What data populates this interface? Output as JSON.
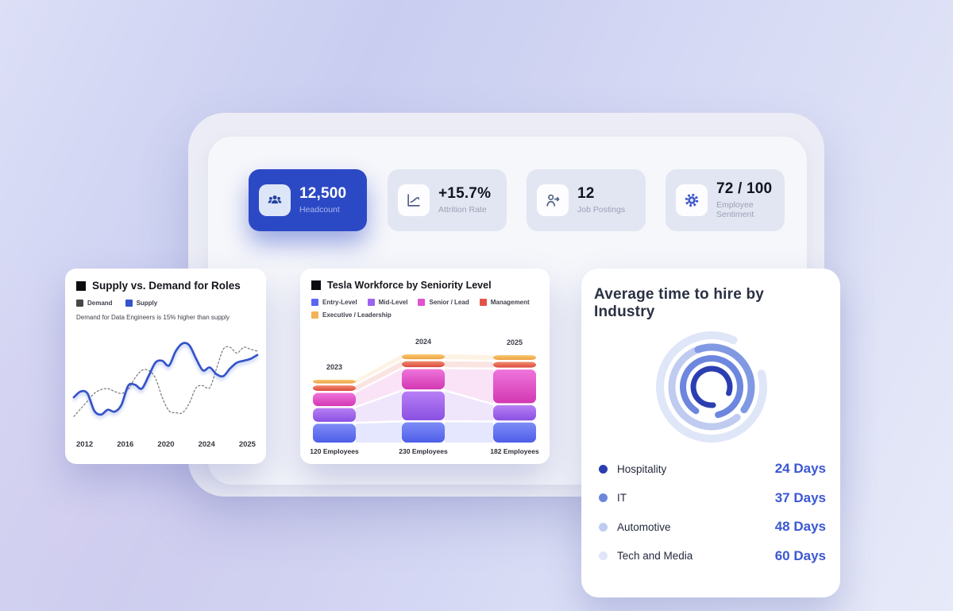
{
  "theme": {
    "primary_blue": "#2c49c5",
    "value_blue": "#3b57d2",
    "card_bg": "#ffffff",
    "kpi_bg": "#e2e6f2"
  },
  "kpis": [
    {
      "value": "12,500",
      "label": "Headcount",
      "icon": "people-group-icon",
      "active": true
    },
    {
      "value": "+15.7%",
      "label": "Attrition Rate",
      "icon": "trend-up-icon",
      "active": false
    },
    {
      "value": "12",
      "label": "Job Postings",
      "icon": "user-arrow-icon",
      "active": false
    },
    {
      "value": "72 / 100",
      "label": "Employee Sentiment",
      "icon": "gear-icon",
      "active": false
    }
  ],
  "chart_data": [
    {
      "id": "supply_demand",
      "type": "line",
      "title": "Supply vs. Demand for Roles",
      "note": "Demand for Data Engineers is 15% higher than supply",
      "x_tick_labels": [
        "2012",
        "2016",
        "2020",
        "2024",
        "2025"
      ],
      "ylim": [
        0,
        100
      ],
      "grid": false,
      "legend_position": "top-left",
      "series": [
        {
          "name": "Demand",
          "style": "dotted",
          "color": "#474747",
          "values": [
            18,
            26,
            34,
            42,
            46,
            47,
            44,
            42,
            46,
            58,
            66,
            66,
            58,
            38,
            24,
            22,
            22,
            32,
            48,
            50,
            48,
            68,
            88,
            90,
            84,
            90,
            88,
            86
          ]
        },
        {
          "name": "Supply",
          "style": "solid",
          "color": "#3554c8",
          "values": [
            38,
            44,
            42,
            24,
            20,
            25,
            23,
            30,
            50,
            51,
            47,
            60,
            74,
            76,
            71,
            86,
            94,
            92,
            78,
            66,
            69,
            62,
            60,
            68,
            74,
            76,
            78,
            82
          ]
        }
      ]
    },
    {
      "id": "workforce",
      "type": "stacked-bar",
      "title": "Tesla Workforce by Seniority Level",
      "categories": [
        "2023",
        "2024",
        "2025"
      ],
      "totals": [
        120,
        230,
        182
      ],
      "total_labels": [
        "120 Employees",
        "230 Employees",
        "182 Employees"
      ],
      "series": [
        {
          "name": "Entry-Level",
          "color": "#5a68f0",
          "gradient": [
            "#7e8cf6",
            "#4e5ee9"
          ],
          "values": [
            41,
            58,
            46
          ]
        },
        {
          "name": "Mid-Level",
          "color": "#9c63ee",
          "gradient": [
            "#b77ff5",
            "#8a50e2"
          ],
          "values": [
            30,
            83,
            35
          ]
        },
        {
          "name": "Senior / Lead",
          "color": "#e052cf",
          "gradient": [
            "#ef74dc",
            "#d238b2"
          ],
          "values": [
            29,
            58,
            77
          ]
        },
        {
          "name": "Management",
          "color": "#e25449",
          "gradient": [
            "#f08a6b",
            "#dc4b42"
          ],
          "values": [
            12,
            17,
            13
          ]
        },
        {
          "name": "Executive / Leadership",
          "color": "#f3b25a",
          "gradient": [
            "#f8c96e",
            "#eea045"
          ],
          "values": [
            8,
            14,
            11
          ]
        }
      ]
    },
    {
      "id": "time_to_hire",
      "type": "radial",
      "title": "Average time to hire by Industry",
      "categories": [
        "Hospitality",
        "IT",
        "Automotive",
        "Tech and Media"
      ],
      "values": [
        24,
        37,
        48,
        60
      ],
      "value_labels": [
        "24 Days",
        "37 Days",
        "48 Days",
        "60 Days"
      ],
      "colors": [
        "#2b3eb1",
        "#6d86de",
        "#c0cbf0",
        "#dfe6f8"
      ],
      "ring_overlay_color": "#8099e2"
    }
  ]
}
